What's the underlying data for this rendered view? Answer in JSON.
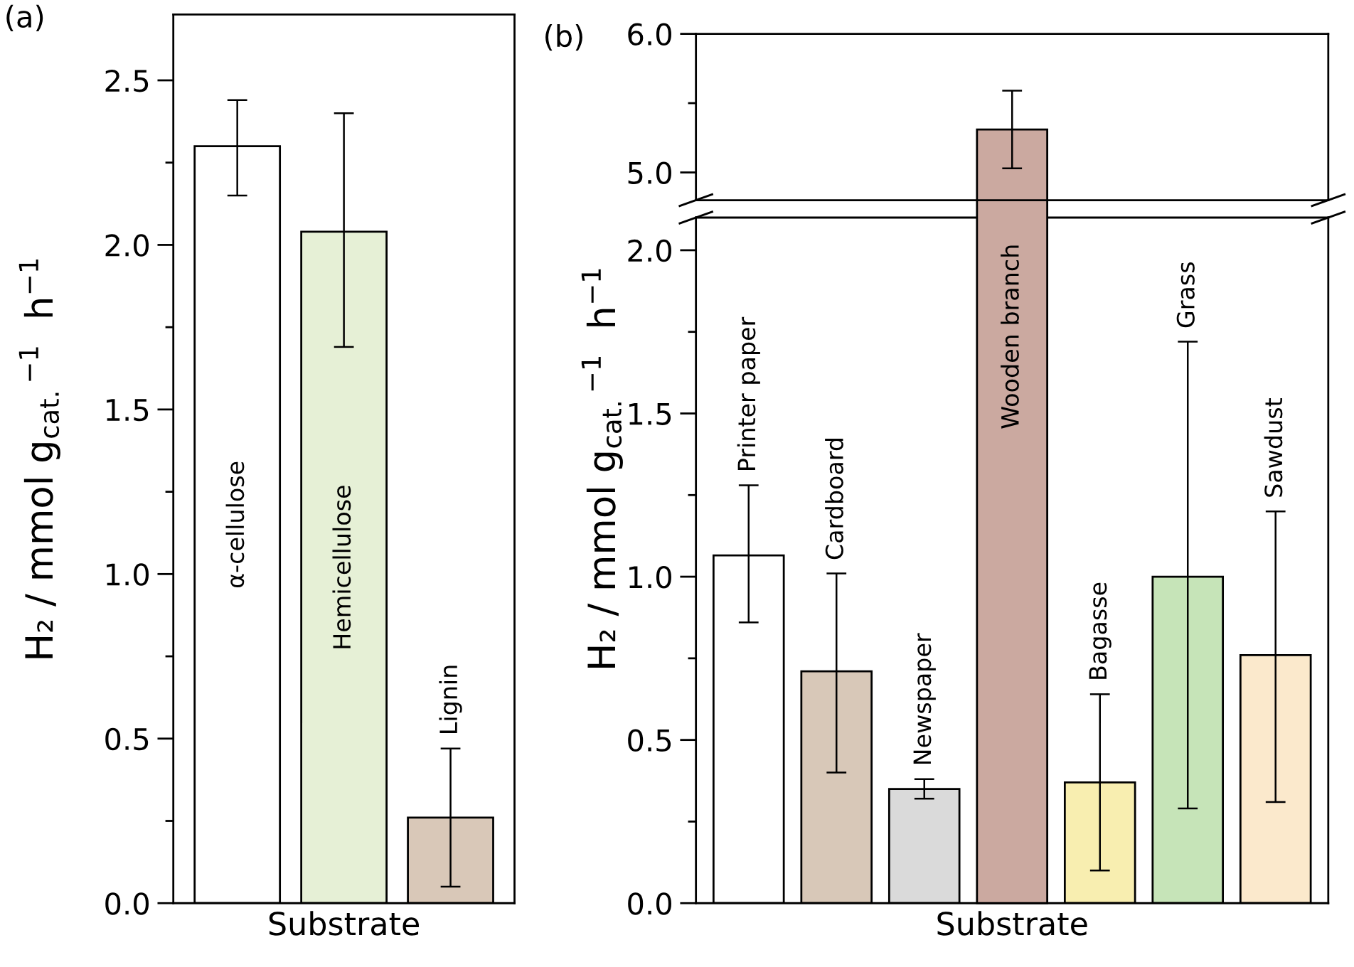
{
  "chart_data": [
    {
      "type": "bar",
      "categories": [
        "α-cellulose",
        "Hemicellulose",
        "Lignin"
      ],
      "values": [
        2.3,
        2.04,
        0.26
      ],
      "colors": [
        "#ffffff",
        "#e6f0d6",
        "#d9c8b8"
      ],
      "errors": [
        [
          2.15,
          2.44
        ],
        [
          1.69,
          2.4
        ],
        [
          0.05,
          0.47
        ]
      ],
      "ylim": [
        0,
        2.7
      ],
      "yticks": [
        {
          "value": 0,
          "label": "0.0"
        },
        {
          "value": 0.25,
          "label": null
        },
        {
          "value": 0.5,
          "label": "0.5"
        },
        {
          "value": 0.75,
          "label": null
        },
        {
          "value": 1.0,
          "label": "1.0"
        },
        {
          "value": 1.25,
          "label": null
        },
        {
          "value": 1.5,
          "label": "1.5"
        },
        {
          "value": 1.75,
          "label": null
        },
        {
          "value": 2.0,
          "label": "2.0"
        },
        {
          "value": 2.25,
          "label": null
        },
        {
          "value": 2.5,
          "label": "2.5"
        }
      ],
      "tick_labels": "y",
      "grid": false,
      "legend": false,
      "ylabel": "H₂ / mmol g$_{cat.}$$^{−1}$  h$^{−1}$",
      "xlabel": "Substrate",
      "annotations": [
        "(a)"
      ]
    },
    {
      "type": "bar",
      "categories": [
        null,
        null,
        null,
        null,
        null,
        null,
        null
      ],
      "values": [
        null,
        null,
        null,
        5.31,
        null,
        null,
        null
      ],
      "colors": [
        "#ffffff",
        "#d8c8b8",
        "#dadada",
        "#cba9a0",
        "#f8eeb0",
        "#c6e4b8",
        "#fbe9cc"
      ],
      "errors": [
        null,
        null,
        null,
        [
          5.03,
          5.59
        ],
        null,
        null,
        null
      ],
      "ylim": [
        4.8,
        6.0
      ],
      "yticks": [
        {
          "value": 5.0,
          "label": "5.0"
        },
        {
          "value": 5.5,
          "label": null
        },
        {
          "value": 6.0,
          "label": "6.0"
        }
      ],
      "tick_labels": "y",
      "grid": false,
      "legend": false,
      "annotations": [
        "(b)"
      ]
    },
    {
      "type": "bar",
      "categories": [
        "Printer paper",
        "Cardboard",
        "Newspaper",
        "Wooden branch",
        "Bagasse",
        "Grass",
        "Sawdust"
      ],
      "values": [
        1.065,
        0.71,
        0.35,
        null,
        0.37,
        1.0,
        0.76
      ],
      "colors": [
        "#ffffff",
        "#d8c8b8",
        "#dadada",
        "#cba9a0",
        "#f8eeb0",
        "#c6e4b8",
        "#fbe9cc"
      ],
      "errors": [
        [
          0.86,
          1.28
        ],
        [
          0.4,
          1.01
        ],
        [
          0.32,
          0.38
        ],
        null,
        [
          0.1,
          0.64
        ],
        [
          0.29,
          1.72
        ],
        [
          0.31,
          1.2
        ]
      ],
      "ylim": [
        0,
        2.1
      ],
      "yticks": [
        {
          "value": 0,
          "label": "0.0"
        },
        {
          "value": 0.25,
          "label": null
        },
        {
          "value": 0.5,
          "label": "0.5"
        },
        {
          "value": 0.75,
          "label": null
        },
        {
          "value": 1.0,
          "label": "1.0"
        },
        {
          "value": 1.25,
          "label": null
        },
        {
          "value": 1.5,
          "label": "1.5"
        },
        {
          "value": 1.75,
          "label": null
        },
        {
          "value": 2.0,
          "label": "2.0"
        }
      ],
      "tick_labels": "y",
      "grid": false,
      "legend": false,
      "ylabel": "H₂ / mmol g$_{cat.}$$^{−1}$  h$^{−1}$",
      "xlabel": "Substrate"
    }
  ]
}
